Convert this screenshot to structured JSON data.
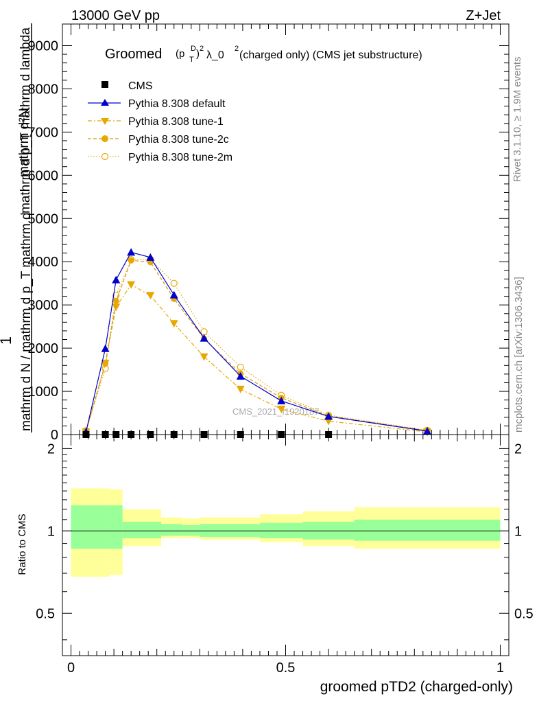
{
  "header": {
    "left": "13000 GeV pp",
    "right": "Z+Jet"
  },
  "side_labels": {
    "rivet": "Rivet 3.1.10, ≥ 1.9M events",
    "mcplots": "mcplots.cern.ch [arXiv:1306.3436]"
  },
  "watermark": "CMS_2021_I1920187",
  "colors": {
    "cms": "#000000",
    "default": "#0000cc",
    "tune": "#e8a800",
    "tune_dark": "#d29a10",
    "band_inner": "#99ff99",
    "band_outer": "#ffff99"
  },
  "chart_data": [
    {
      "type": "line",
      "title_main": "Groomed",
      "title_sup1": "D",
      "title_base": "(p",
      "title_sub": "T",
      "title_close": ")",
      "title_sup2": "2",
      "title_rest": " λ_0",
      "title_sup3": "2",
      "title_tail": "  (charged only) (CMS jet substructure)",
      "ylabel_numerator": "mathrm d²N",
      "ylabel_numerator_b": "mathrm d p_T mathrm d lambda",
      "ylabel_one": "1",
      "ylabel_denominator": "mathrm d N / mathrm d p_T mathrm d",
      "ylim": [
        0,
        9500
      ],
      "xlim": [
        -0.02,
        1.02
      ],
      "yticks": [
        0,
        1000,
        2000,
        3000,
        4000,
        5000,
        6000,
        7000,
        8000,
        9000
      ],
      "ytick_labels": [
        "0",
        "1000",
        "2000",
        "3000",
        "4000",
        "5000",
        "6000",
        "7000",
        "8000",
        "9000"
      ],
      "legend": [
        "CMS",
        "Pythia 8.308 default",
        "Pythia 8.308 tune-1",
        "Pythia 8.308 tune-2c",
        "Pythia 8.308 tune-2m"
      ],
      "series": [
        {
          "name": "CMS",
          "x": [
            0.035,
            0.08,
            0.105,
            0.14,
            0.185,
            0.24,
            0.31,
            0.395,
            0.49,
            0.6
          ],
          "y": [
            0,
            0,
            0,
            0,
            0,
            0,
            0,
            0,
            0,
            0
          ]
        },
        {
          "name": "Pythia 8.308 default",
          "x": [
            0.035,
            0.08,
            0.105,
            0.14,
            0.185,
            0.24,
            0.31,
            0.395,
            0.49,
            0.6,
            0.83
          ],
          "y": [
            60,
            1990,
            3580,
            4220,
            4100,
            3230,
            2230,
            1350,
            780,
            420,
            80
          ]
        },
        {
          "name": "Pythia 8.308 tune-1",
          "x": [
            0.035,
            0.08,
            0.105,
            0.14,
            0.185,
            0.24,
            0.31,
            0.395,
            0.49,
            0.6,
            0.83
          ],
          "y": [
            60,
            1650,
            2950,
            3470,
            3220,
            2570,
            1800,
            1050,
            590,
            310,
            60
          ]
        },
        {
          "name": "Pythia 8.308 tune-2c",
          "x": [
            0.035,
            0.08,
            0.105,
            0.14,
            0.185,
            0.24,
            0.31,
            0.395,
            0.49,
            0.6,
            0.83
          ],
          "y": [
            80,
            1640,
            3090,
            4030,
            3990,
            3140,
            2220,
            1410,
            850,
            430,
            90
          ]
        },
        {
          "name": "Pythia 8.308 tune-2m",
          "x": [
            0.035,
            0.08,
            0.105,
            0.14,
            0.185,
            0.24,
            0.31,
            0.395,
            0.49,
            0.6,
            0.83
          ],
          "y": [
            90,
            1530,
            3220,
            4050,
            4060,
            3500,
            2380,
            1560,
            910,
            450,
            100
          ]
        }
      ]
    },
    {
      "type": "area",
      "ylabel": "Ratio to CMS",
      "xlabel": "groomed pTD2 (charged-only)",
      "ylim": [
        0.35,
        2.25
      ],
      "xlim": [
        -0.02,
        1.02
      ],
      "yticks": [
        0.5,
        1,
        2
      ],
      "ytick_labels": [
        "0.5",
        "1",
        "2"
      ],
      "xticks": [
        0,
        0.5,
        1
      ],
      "xtick_labels": [
        "0",
        "0.5",
        "1"
      ],
      "band_edges": [
        0,
        0.09,
        0.12,
        0.21,
        0.26,
        0.3,
        0.44,
        0.54,
        0.66,
        1.0
      ],
      "inner_low": [
        0.86,
        0.86,
        0.94,
        0.96,
        0.96,
        0.95,
        0.94,
        0.93,
        0.92,
        0.92
      ],
      "inner_high": [
        1.24,
        1.24,
        1.08,
        1.06,
        1.05,
        1.06,
        1.07,
        1.08,
        1.1,
        1.1
      ],
      "outer_low": [
        0.68,
        0.69,
        0.88,
        0.94,
        0.94,
        0.93,
        0.91,
        0.88,
        0.86,
        0.85
      ],
      "outer_high": [
        1.43,
        1.42,
        1.2,
        1.12,
        1.11,
        1.12,
        1.15,
        1.18,
        1.22,
        1.26
      ]
    }
  ]
}
